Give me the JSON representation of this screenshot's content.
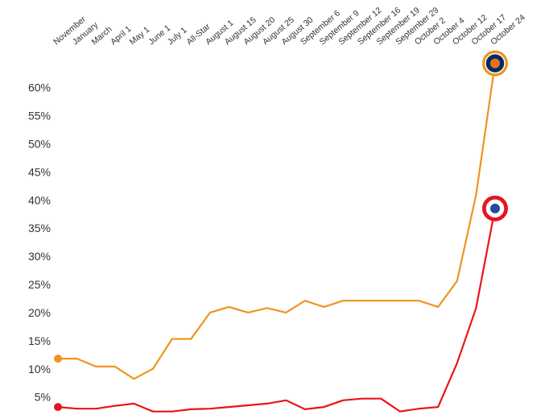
{
  "chart_data": {
    "type": "line",
    "categories": [
      "November",
      "January",
      "March",
      "April 1",
      "May 1",
      "June 1",
      "July 1",
      "All-Star",
      "August 1",
      "August 15",
      "August 20",
      "August 25",
      "August 30",
      "September 6",
      "September 9",
      "September 12",
      "September 16",
      "September 19",
      "September 29",
      "October 2",
      "October 4",
      "October 12",
      "October 17",
      "October 24"
    ],
    "series": [
      {
        "color": "#f0931e",
        "values": [
          12.0,
          12.0,
          10.6,
          10.6,
          8.4,
          10.2,
          15.5,
          15.5,
          20.2,
          21.2,
          20.2,
          21.0,
          20.2,
          22.3,
          21.2,
          22.3,
          22.3,
          22.3,
          22.3,
          22.3,
          21.2,
          25.8,
          41.1,
          64.5
        ]
      },
      {
        "color": "#e8141c",
        "values": [
          3.4,
          3.1,
          3.1,
          3.6,
          4.0,
          2.6,
          2.6,
          3.0,
          3.1,
          3.4,
          3.7,
          4.0,
          4.6,
          3.0,
          3.4,
          4.6,
          4.9,
          4.9,
          2.6,
          3.1,
          3.4,
          11.2,
          21.0,
          38.7
        ]
      }
    ],
    "ylim": [
      1.5,
      65
    ],
    "yticks": [
      {
        "value": 5,
        "label": "5%"
      },
      {
        "value": 10,
        "label": "10%"
      },
      {
        "value": 15,
        "label": "15%"
      },
      {
        "value": 20,
        "label": "20%"
      },
      {
        "value": 25,
        "label": "25%"
      },
      {
        "value": 30,
        "label": "30%"
      },
      {
        "value": 35,
        "label": "35%"
      },
      {
        "value": 40,
        "label": "40%"
      },
      {
        "value": 45,
        "label": "45%"
      },
      {
        "value": 50,
        "label": "50%"
      },
      {
        "value": 55,
        "label": "55%"
      },
      {
        "value": 60,
        "label": "60%"
      }
    ]
  }
}
